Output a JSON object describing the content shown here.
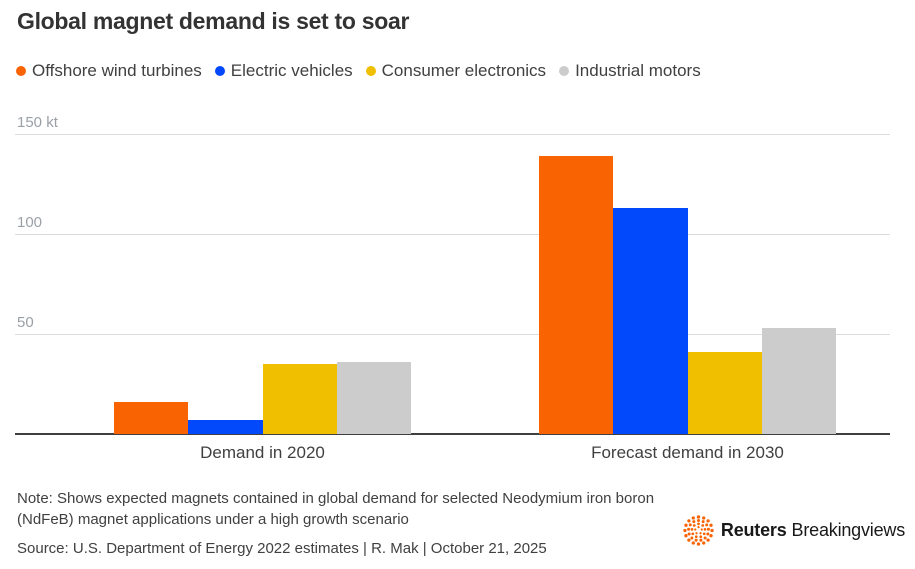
{
  "title": "Global magnet demand is set to soar",
  "note": "Note: Shows expected magnets contained in global demand for selected Neodymium iron boron (NdFeB) magnet applications under a high growth scenario",
  "source": "Source: U.S. Department of Energy 2022 estimates | R. Mak | October 21, 2025",
  "logo": {
    "brand": "Reuters",
    "suffix": "Breakingviews",
    "dot_color": "#F96302",
    "text_color": "#191919"
  },
  "colors": {
    "title": "#333333",
    "text": "#404040",
    "tick_label": "#9AA0A6",
    "gridline": "#DCDCDC",
    "axis": "#404040",
    "background": "#FFFFFF"
  },
  "chart_data": {
    "type": "bar",
    "title": "Global magnet demand is set to soar",
    "unit": "kt",
    "categories": [
      "Demand in 2020",
      "Forecast demand in 2030"
    ],
    "series": [
      {
        "name": "Offshore wind turbines",
        "color": "#F96302",
        "values": [
          16,
          139
        ]
      },
      {
        "name": "Electric vehicles",
        "color": "#0349FC",
        "values": [
          7,
          113
        ]
      },
      {
        "name": "Consumer electronics",
        "color": "#F0C000",
        "values": [
          35,
          41
        ]
      },
      {
        "name": "Industrial motors",
        "color": "#CCCCCC",
        "values": [
          36,
          53
        ]
      }
    ],
    "yticks": [
      {
        "value": 150,
        "label": "150 kt"
      },
      {
        "value": 100,
        "label": "100"
      },
      {
        "value": 50,
        "label": "50"
      }
    ],
    "ylim": [
      0,
      160
    ],
    "grid": true,
    "legend_position": "top",
    "xlabel": "",
    "ylabel": ""
  }
}
